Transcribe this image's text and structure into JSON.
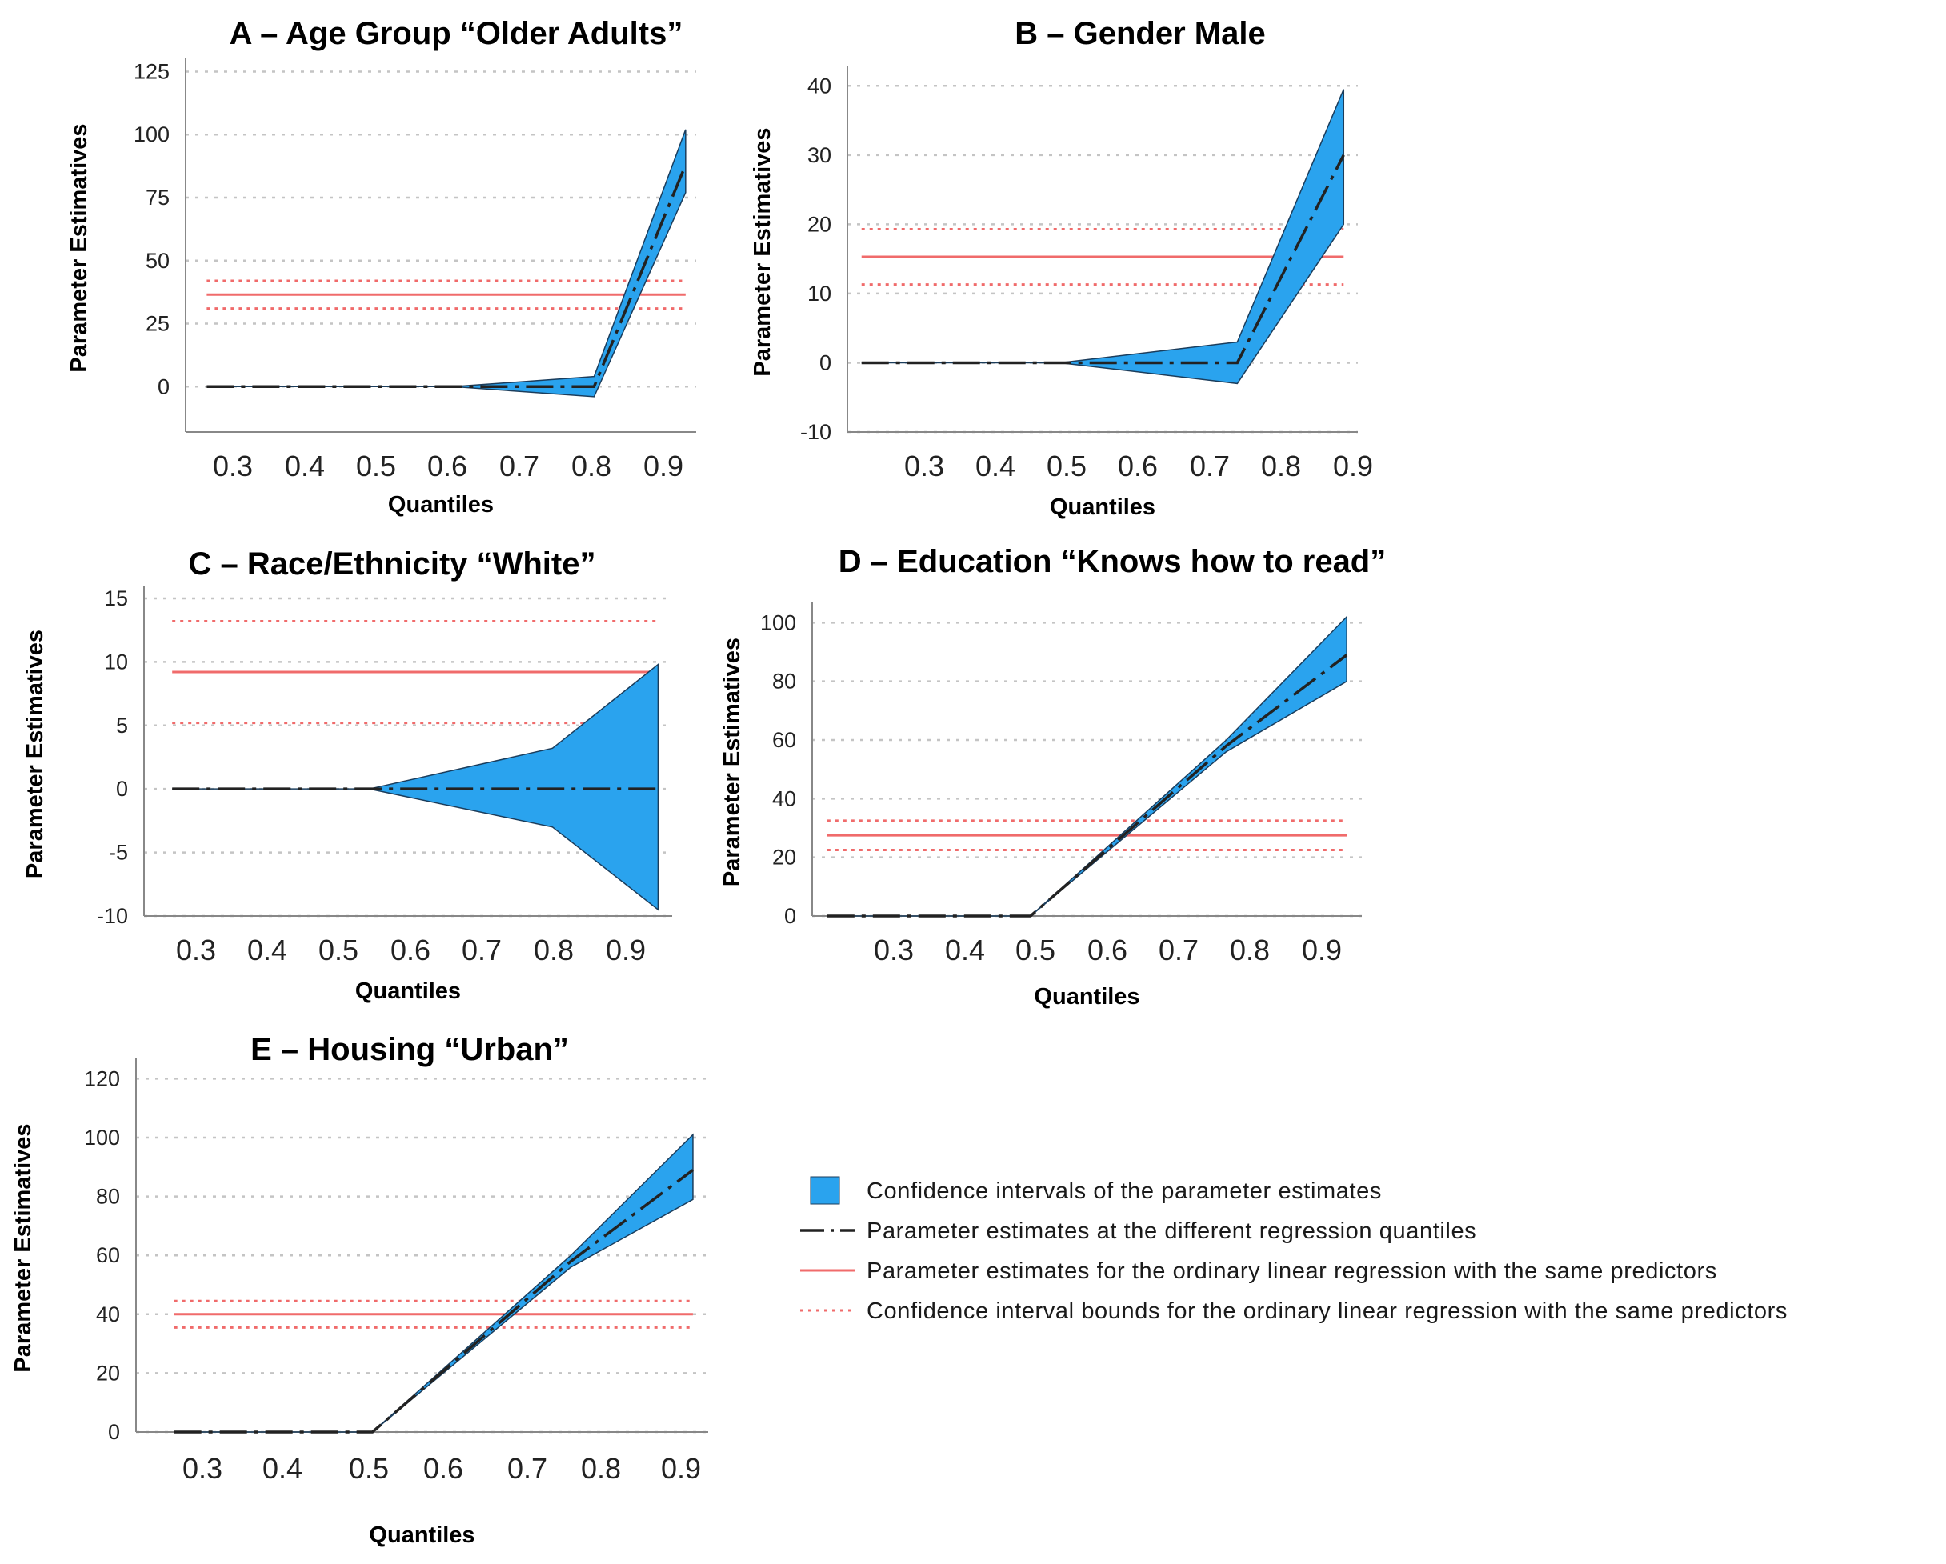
{
  "figure": {
    "x_axis_label": "Quantiles",
    "y_axis_label": "Parameter Estimatives"
  },
  "legend": {
    "items": [
      {
        "label": "Confidence intervals of the parameter estimates",
        "kind": "ci_band"
      },
      {
        "label": "Parameter estimates at the different regression quantiles",
        "kind": "qr_line"
      },
      {
        "label": "Parameter estimates for the ordinary linear regression with the same predictors",
        "kind": "ols_line"
      },
      {
        "label": "Confidence interval bounds for the ordinary linear regression with the same predictors",
        "kind": "ols_ci"
      }
    ]
  },
  "colors": {
    "band_fill": "#2aa3ee",
    "band_edge": "#1b3d5c",
    "qr_line": "#222222",
    "ols": "#f06b6b",
    "grid": "#c4c4c4",
    "axis": "#888888"
  },
  "chart_data": [
    {
      "type": "line",
      "title": "A – Age Group “Older Adults”",
      "xlabel": "Quantiles",
      "ylabel": "Parameter Estimatives",
      "x_ticks": [
        "0.3",
        "0.4",
        "0.5",
        "0.6",
        "0.7",
        "0.8",
        "0.9"
      ],
      "y_ticks": [
        0,
        25,
        50,
        75,
        100,
        125
      ],
      "ylim": [
        -18,
        128
      ],
      "xlim": [
        0.22,
        0.945
      ],
      "series": [
        {
          "name": "Parameter estimates at the different regression quantiles",
          "x": [
            0.25,
            0.6,
            0.8,
            0.93
          ],
          "estimate": [
            0,
            0,
            0,
            88
          ],
          "lower": [
            0,
            0,
            -4,
            77
          ],
          "upper": [
            0,
            0,
            4,
            102
          ]
        }
      ],
      "ols": {
        "estimate": 36.5,
        "lower": 31,
        "upper": 42,
        "x_range": [
          0.25,
          0.93
        ]
      }
    },
    {
      "type": "line",
      "title": "B – Gender Male",
      "xlabel": "Quantiles",
      "ylabel": "Parameter Estimatives",
      "x_ticks": [
        "0.3",
        "0.4",
        "0.5",
        "0.6",
        "0.7",
        "0.8",
        "0.9"
      ],
      "y_ticks": [
        -10,
        0,
        10,
        20,
        30,
        40
      ],
      "ylim": [
        -10,
        42
      ],
      "xlim": [
        0.2,
        0.92
      ],
      "series": [
        {
          "name": "Parameter estimates at the different regression quantiles",
          "x": [
            0.22,
            0.5,
            0.75,
            0.9
          ],
          "estimate": [
            0,
            0,
            0,
            30
          ],
          "lower": [
            0,
            0,
            -3,
            20
          ],
          "upper": [
            0,
            0,
            3,
            39.5
          ]
        }
      ],
      "ols": {
        "estimate": 15.3,
        "lower": 11.3,
        "upper": 19.3,
        "x_range": [
          0.22,
          0.9
        ]
      }
    },
    {
      "type": "line",
      "title": "C – Race/Ethnicity “White”",
      "xlabel": "Quantiles",
      "ylabel": "Parameter Estimatives",
      "x_ticks": [
        "0.3",
        "0.4",
        "0.5",
        "0.6",
        "0.7",
        "0.8",
        "0.9"
      ],
      "y_ticks": [
        -10,
        -5,
        0,
        5,
        10,
        15
      ],
      "ylim": [
        -10,
        15.5
      ],
      "xlim": [
        0.2,
        0.95
      ],
      "series": [
        {
          "name": "Parameter estimates at the different regression quantiles",
          "x": [
            0.24,
            0.52,
            0.78,
            0.93
          ],
          "estimate": [
            0,
            0,
            0,
            0
          ],
          "lower": [
            0,
            0,
            -3,
            -9.5
          ],
          "upper": [
            0,
            0,
            3.2,
            9.8
          ]
        }
      ],
      "ols": {
        "estimate": 9.2,
        "lower": 5.2,
        "upper": 13.2,
        "x_range": [
          0.24,
          0.93
        ]
      }
    },
    {
      "type": "line",
      "title": "D – Education “Knows how to read”",
      "xlabel": "Quantiles",
      "ylabel": "Parameter Estimatives",
      "x_ticks": [
        "0.3",
        "0.4",
        "0.5",
        "0.6",
        "0.7",
        "0.8",
        "0.9"
      ],
      "y_ticks": [
        0,
        20,
        40,
        60,
        80,
        100
      ],
      "ylim": [
        0,
        105
      ],
      "xlim": [
        0.2,
        0.93
      ],
      "series": [
        {
          "name": "Parameter estimates at the different regression quantiles",
          "x": [
            0.22,
            0.49,
            0.75,
            0.91
          ],
          "estimate": [
            0,
            0,
            58,
            89
          ],
          "lower": [
            0,
            0,
            56,
            80
          ],
          "upper": [
            0,
            0,
            60,
            102
          ]
        }
      ],
      "ols": {
        "estimate": 27.5,
        "lower": 22.5,
        "upper": 32.5,
        "x_range": [
          0.22,
          0.91
        ]
      }
    },
    {
      "type": "line",
      "title": "E – Housing “Urban”",
      "xlabel": "Quantiles",
      "ylabel": "Parameter Estimatives",
      "x_ticks": [
        "0.3",
        "0.4",
        "0.5",
        "0.6",
        "0.7",
        "0.8",
        "0.9"
      ],
      "y_ticks": [
        0,
        20,
        40,
        60,
        80,
        100,
        120
      ],
      "ylim": [
        0,
        125
      ],
      "xlim": [
        0.19,
        0.94
      ],
      "series": [
        {
          "name": "Parameter estimates at the different regression quantiles",
          "x": [
            0.24,
            0.5,
            0.76,
            0.92
          ],
          "estimate": [
            0,
            0,
            58,
            89
          ],
          "lower": [
            0,
            0,
            56,
            79
          ],
          "upper": [
            0,
            0,
            60,
            101
          ]
        }
      ],
      "ols": {
        "estimate": 40,
        "lower": 35.5,
        "upper": 44.5,
        "x_range": [
          0.24,
          0.92
        ]
      }
    }
  ]
}
